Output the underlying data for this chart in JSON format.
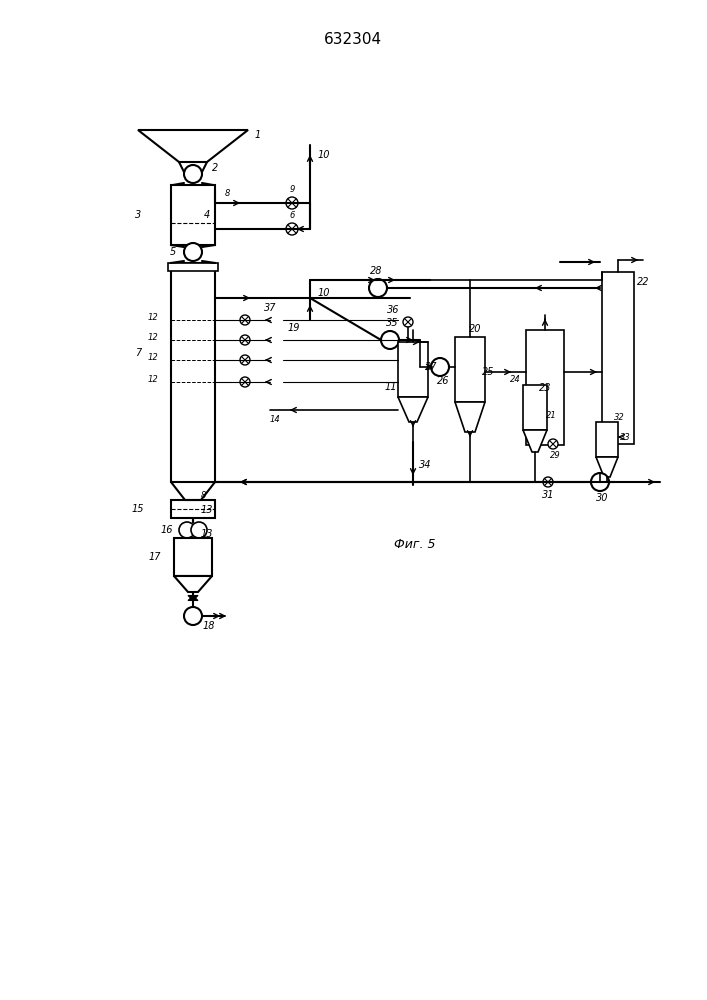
{
  "title": "632304",
  "caption": "Фиг. 5",
  "bg_color": "#ffffff",
  "line_color": "#000000",
  "title_fontsize": 11,
  "caption_fontsize": 9
}
